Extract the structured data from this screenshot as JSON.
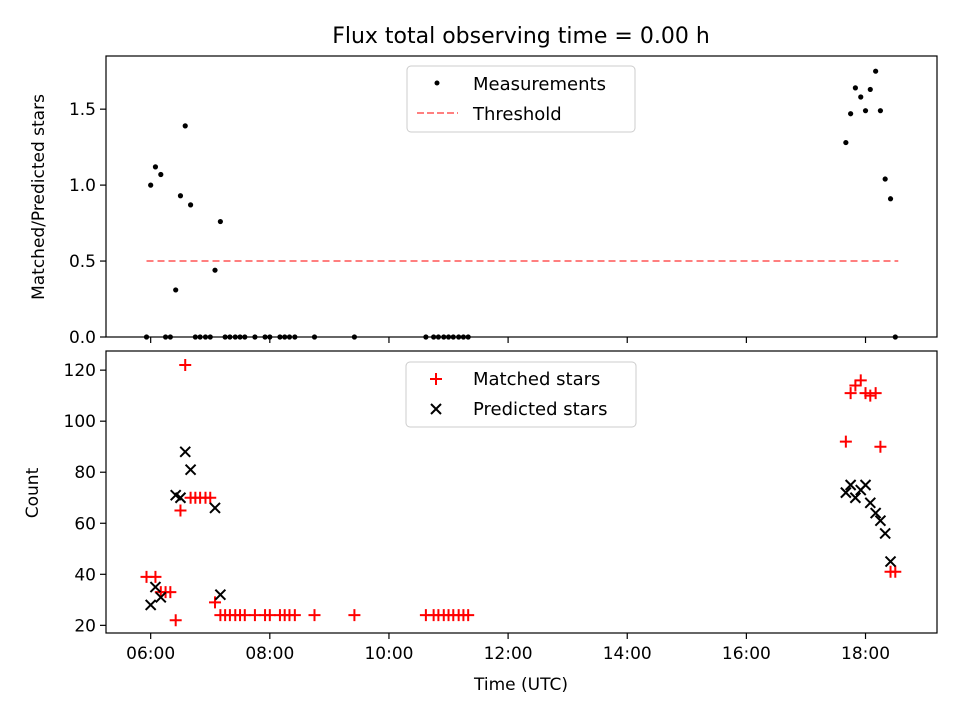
{
  "chart_data": {
    "type": "scatter",
    "title": "Flux total observing time = 0.00 h",
    "xlabel": "Time (UTC)",
    "x_unit": "hours UTC",
    "xlim": [
      5.25,
      19.2
    ],
    "xticks": [
      6,
      8,
      10,
      12,
      14,
      16,
      18
    ],
    "xtick_labels": [
      "06:00",
      "08:00",
      "10:00",
      "12:00",
      "14:00",
      "16:00",
      "18:00"
    ],
    "shared_x": true,
    "panels": [
      {
        "ylabel": "Matched/Predicted stars",
        "ylim": [
          0,
          1.85
        ],
        "yticks": [
          0.0,
          0.5,
          1.0,
          1.5
        ],
        "ytick_labels": [
          "0.0",
          "0.5",
          "1.0",
          "1.5"
        ],
        "legend": {
          "placement": "upper-center",
          "entries": [
            {
              "label": "Measurements",
              "marker": "dot",
              "color": "#000000"
            },
            {
              "label": "Threshold",
              "marker": "dashed-line",
              "color": "#ff7f7f"
            }
          ]
        },
        "series": [
          {
            "name": "Measurements",
            "marker": "dot",
            "color": "#000000",
            "points": [
              [
                5.93,
                0
              ],
              [
                6.0,
                1.0
              ],
              [
                6.08,
                1.12
              ],
              [
                6.17,
                1.07
              ],
              [
                6.25,
                0
              ],
              [
                6.33,
                0
              ],
              [
                6.42,
                0.31
              ],
              [
                6.5,
                0.93
              ],
              [
                6.58,
                1.39
              ],
              [
                6.67,
                0.87
              ],
              [
                6.75,
                0
              ],
              [
                6.83,
                0
              ],
              [
                6.92,
                0
              ],
              [
                7.0,
                0
              ],
              [
                7.08,
                0.44
              ],
              [
                7.17,
                0.76
              ],
              [
                7.25,
                0
              ],
              [
                7.33,
                0
              ],
              [
                7.42,
                0
              ],
              [
                7.5,
                0
              ],
              [
                7.58,
                0
              ],
              [
                7.75,
                0
              ],
              [
                7.92,
                0
              ],
              [
                8.0,
                0
              ],
              [
                8.17,
                0
              ],
              [
                8.25,
                0
              ],
              [
                8.33,
                0
              ],
              [
                8.42,
                0
              ],
              [
                8.75,
                0
              ],
              [
                9.42,
                0
              ],
              [
                10.62,
                0
              ],
              [
                10.75,
                0
              ],
              [
                10.83,
                0
              ],
              [
                10.92,
                0
              ],
              [
                11.0,
                0
              ],
              [
                11.08,
                0
              ],
              [
                11.17,
                0
              ],
              [
                11.25,
                0
              ],
              [
                11.33,
                0
              ],
              [
                17.67,
                1.28
              ],
              [
                17.75,
                1.47
              ],
              [
                17.83,
                1.64
              ],
              [
                17.92,
                1.58
              ],
              [
                18.0,
                1.49
              ],
              [
                18.08,
                1.63
              ],
              [
                18.17,
                1.75
              ],
              [
                18.25,
                1.49
              ],
              [
                18.33,
                1.04
              ],
              [
                18.42,
                0.91
              ],
              [
                18.5,
                0
              ]
            ]
          },
          {
            "name": "Threshold",
            "type": "line",
            "dashed": true,
            "color": "#ff7f7f",
            "x": [
              5.93,
              18.55
            ],
            "y": [
              0.5,
              0.5
            ]
          }
        ]
      },
      {
        "ylabel": "Count",
        "ylim": [
          17,
          127.5
        ],
        "yticks": [
          20,
          40,
          60,
          80,
          100,
          120
        ],
        "ytick_labels": [
          "20",
          "40",
          "60",
          "80",
          "100",
          "120"
        ],
        "legend": {
          "placement": "upper-center",
          "entries": [
            {
              "label": "Matched stars",
              "marker": "plus",
              "color": "#ff0000"
            },
            {
              "label": "Predicted stars",
              "marker": "x",
              "color": "#000000"
            }
          ]
        },
        "series": [
          {
            "name": "Matched stars",
            "marker": "plus",
            "color": "#ff0000",
            "points": [
              [
                5.93,
                39
              ],
              [
                6.08,
                39
              ],
              [
                6.17,
                33
              ],
              [
                6.25,
                33
              ],
              [
                6.33,
                33
              ],
              [
                6.42,
                22
              ],
              [
                6.5,
                65
              ],
              [
                6.58,
                122
              ],
              [
                6.67,
                70
              ],
              [
                6.75,
                70
              ],
              [
                6.83,
                70
              ],
              [
                6.92,
                70
              ],
              [
                7.0,
                70
              ],
              [
                7.08,
                29
              ],
              [
                7.17,
                24
              ],
              [
                7.25,
                24
              ],
              [
                7.33,
                24
              ],
              [
                7.42,
                24
              ],
              [
                7.5,
                24
              ],
              [
                7.58,
                24
              ],
              [
                7.75,
                24
              ],
              [
                7.92,
                24
              ],
              [
                8.0,
                24
              ],
              [
                8.17,
                24
              ],
              [
                8.25,
                24
              ],
              [
                8.33,
                24
              ],
              [
                8.42,
                24
              ],
              [
                8.75,
                24
              ],
              [
                9.42,
                24
              ],
              [
                10.62,
                24
              ],
              [
                10.75,
                24
              ],
              [
                10.83,
                24
              ],
              [
                10.92,
                24
              ],
              [
                11.0,
                24
              ],
              [
                11.08,
                24
              ],
              [
                11.17,
                24
              ],
              [
                11.25,
                24
              ],
              [
                11.33,
                24
              ],
              [
                17.67,
                92
              ],
              [
                17.75,
                111
              ],
              [
                17.83,
                114
              ],
              [
                17.92,
                116
              ],
              [
                18.0,
                111
              ],
              [
                18.08,
                110
              ],
              [
                18.17,
                111
              ],
              [
                18.25,
                90
              ],
              [
                18.42,
                41
              ],
              [
                18.5,
                41
              ]
            ]
          },
          {
            "name": "Predicted stars",
            "marker": "x",
            "color": "#000000",
            "points": [
              [
                6.0,
                28
              ],
              [
                6.08,
                35
              ],
              [
                6.17,
                31
              ],
              [
                6.42,
                71
              ],
              [
                6.5,
                70
              ],
              [
                6.58,
                88
              ],
              [
                6.67,
                81
              ],
              [
                7.08,
                66
              ],
              [
                7.17,
                32
              ],
              [
                17.67,
                72
              ],
              [
                17.75,
                75
              ],
              [
                17.83,
                70
              ],
              [
                17.92,
                73
              ],
              [
                18.0,
                75
              ],
              [
                18.08,
                68
              ],
              [
                18.17,
                64
              ],
              [
                18.25,
                61
              ],
              [
                18.33,
                56
              ],
              [
                18.42,
                45
              ]
            ]
          }
        ]
      }
    ]
  }
}
